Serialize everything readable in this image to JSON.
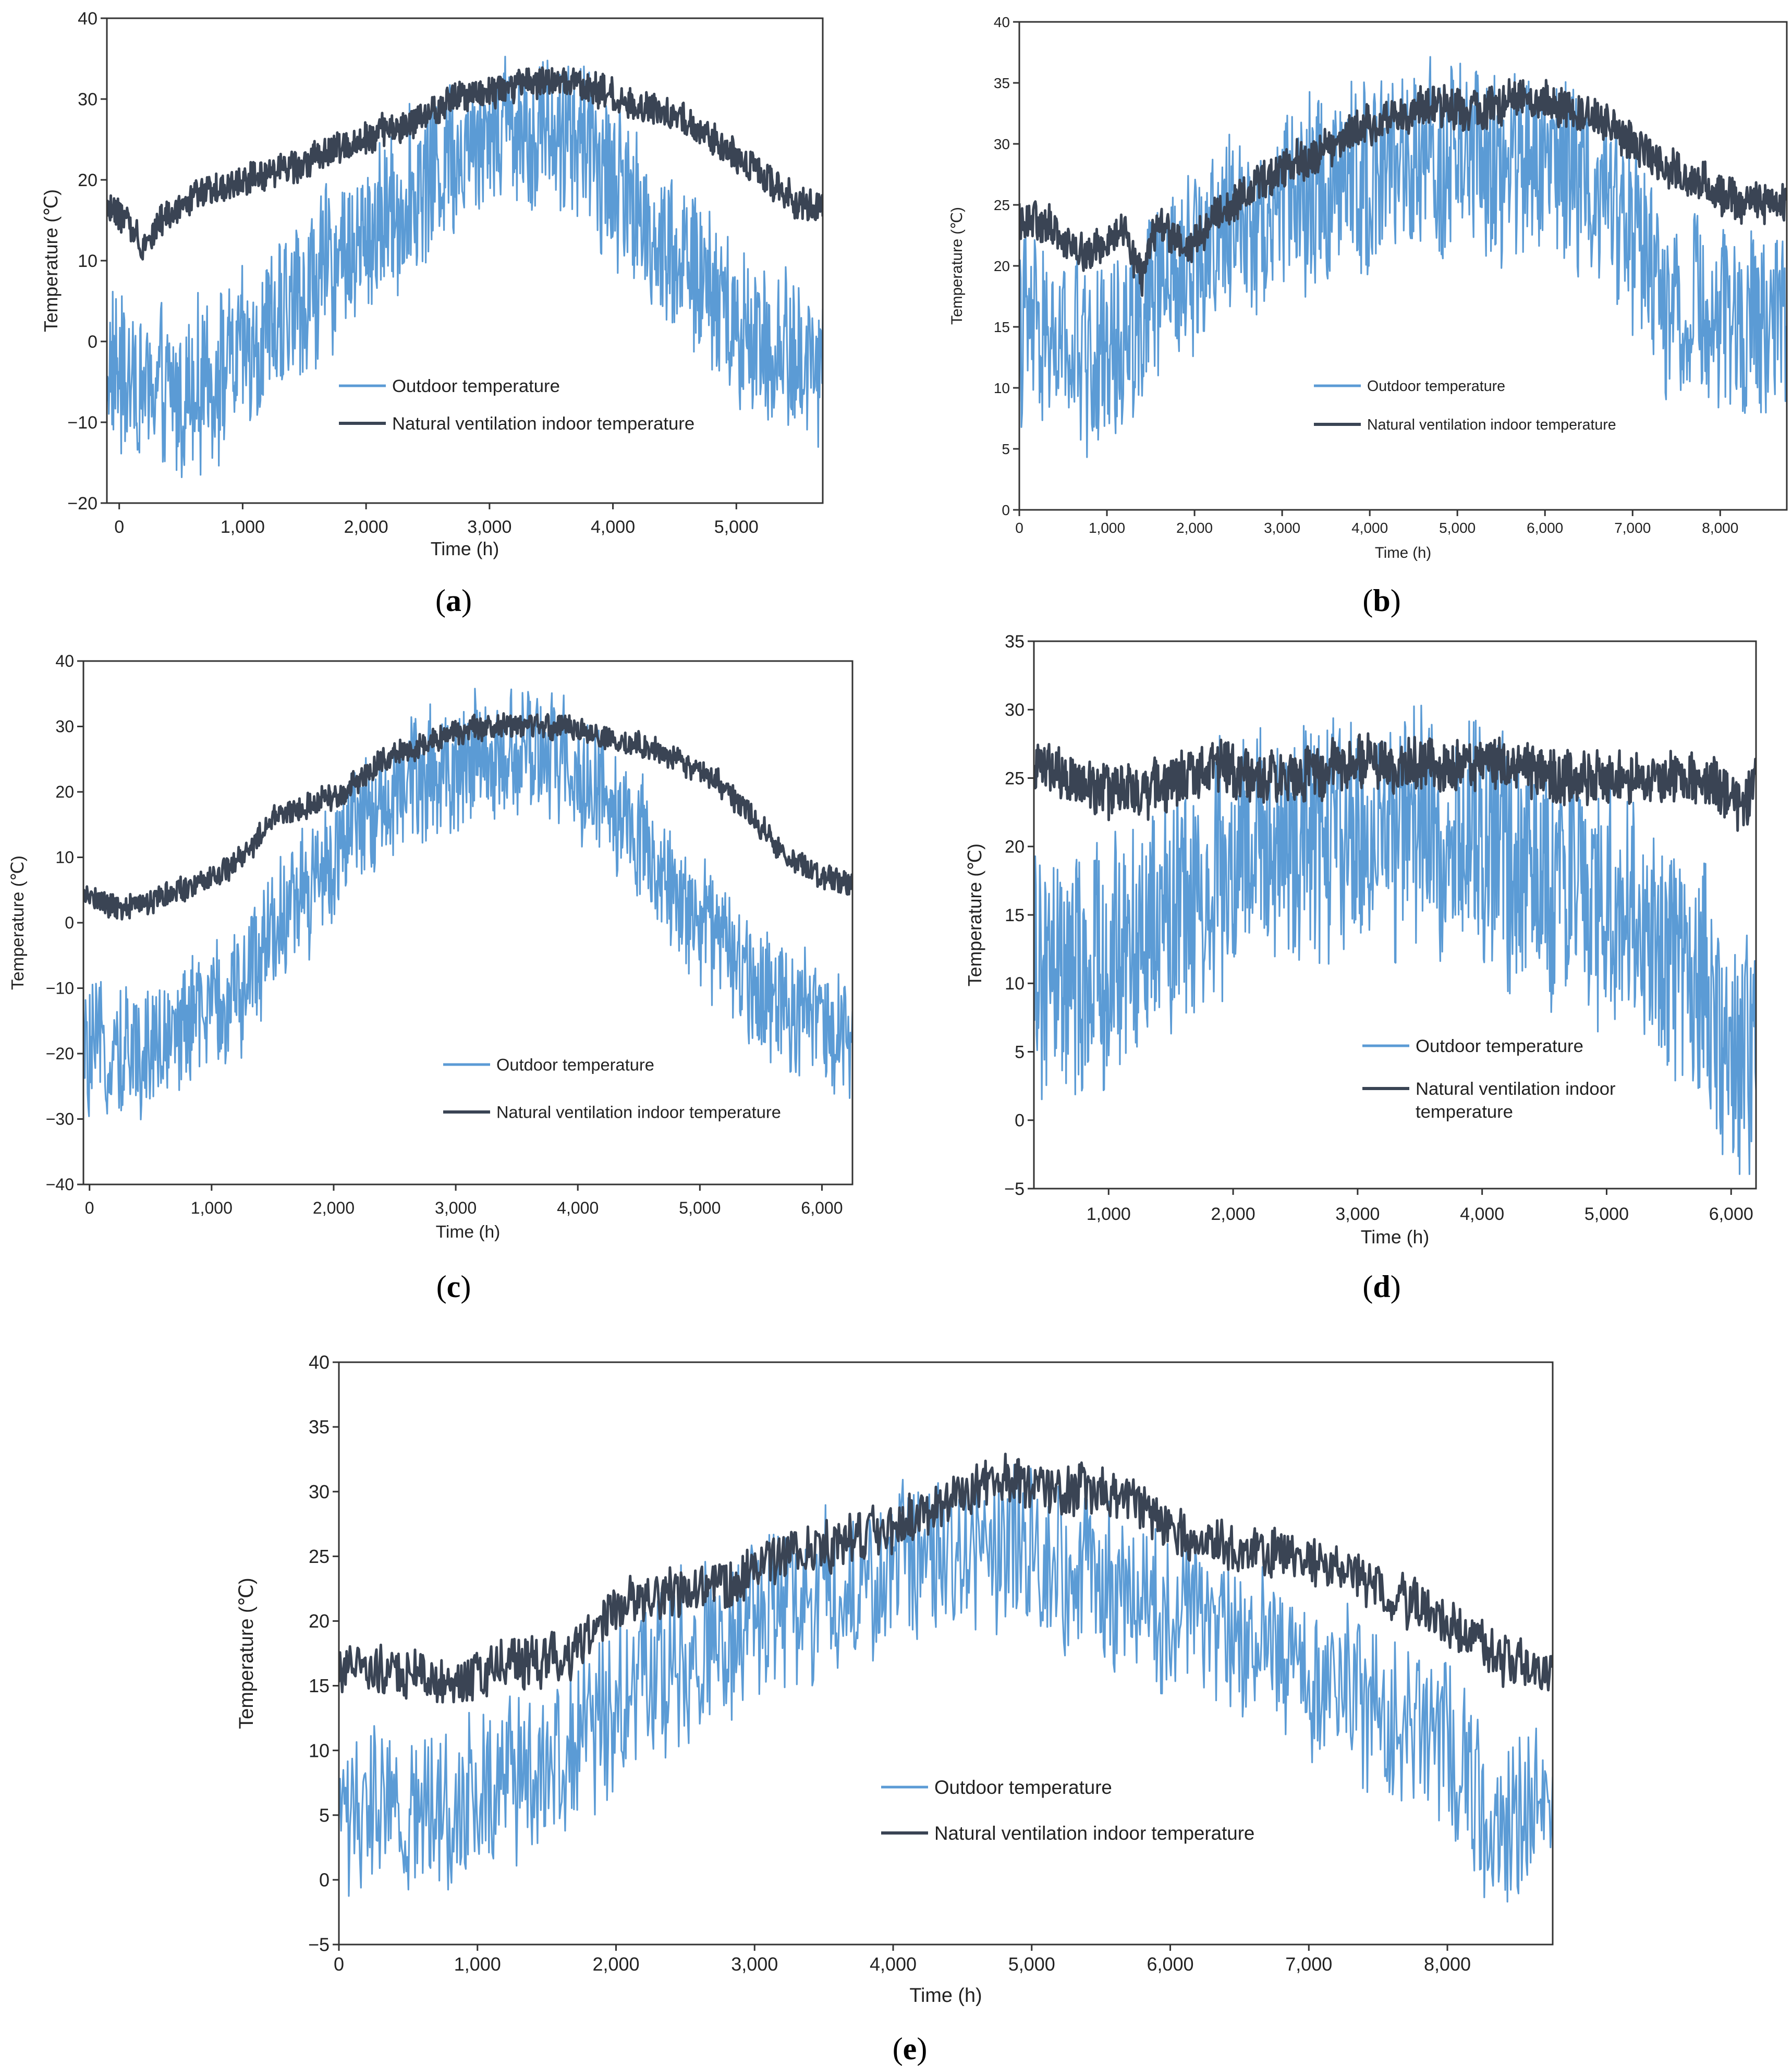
{
  "colors": {
    "outdoor": "#5b9bd5",
    "indoor": "#3a4454",
    "axis": "#333333"
  },
  "chart_data": [
    {
      "id": "a",
      "type": "line",
      "caption_letter": "a",
      "caption_open": "(",
      "caption_close": ")",
      "xlabel": "Time (h)",
      "ylabel": "Temperature (℃)",
      "xlim": [
        -100,
        5700
      ],
      "ylim": [
        -20,
        40
      ],
      "yticks": [
        "40",
        "30",
        "20",
        "10",
        "0",
        "−10",
        "−20"
      ],
      "ytick_values": [
        40,
        30,
        20,
        10,
        0,
        -10,
        -20
      ],
      "xticks": [
        "0",
        "1,000",
        "2,000",
        "3,000",
        "4,000",
        "5,000"
      ],
      "xtick_values": [
        0,
        1000,
        2000,
        3000,
        4000,
        5000
      ],
      "legend": [
        "Outdoor temperature",
        "Natural ventilation indoor temperature"
      ],
      "series": [
        {
          "name": "Outdoor temperature",
          "x": [
            -100,
            200,
            500,
            800,
            1100,
            1400,
            1700,
            2000,
            2300,
            2600,
            2900,
            3200,
            3500,
            3800,
            4100,
            4400,
            4700,
            5000,
            5300,
            5700
          ],
          "values": [
            -3,
            -6,
            -7,
            -4,
            -1,
            4,
            9,
            13,
            17,
            22,
            26,
            27,
            26,
            24,
            18,
            12,
            8,
            2,
            -1,
            -3
          ],
          "spread": 9
        },
        {
          "name": "Natural ventilation indoor temperature",
          "x": [
            -100,
            50,
            200,
            350,
            600,
            900,
            1200,
            1500,
            1800,
            2100,
            2400,
            2700,
            3000,
            3300,
            3600,
            3900,
            4200,
            4500,
            4800,
            5100,
            5400,
            5700
          ],
          "values": [
            17,
            15,
            12,
            15,
            18,
            19,
            21,
            22,
            24,
            26,
            27,
            30,
            31,
            32,
            32,
            31,
            29,
            28,
            25,
            22,
            18,
            16
          ],
          "spread": 1.8
        }
      ]
    },
    {
      "id": "b",
      "type": "line",
      "caption_letter": "b",
      "caption_open": "(",
      "caption_close": ")",
      "xlabel": "Time (h)",
      "ylabel": "Temperature (℃)",
      "xlim": [
        0,
        8760
      ],
      "ylim": [
        0,
        40
      ],
      "yticks": [
        "40",
        "35",
        "30",
        "25",
        "20",
        "15",
        "10",
        "5",
        "0"
      ],
      "ytick_values": [
        40,
        35,
        30,
        25,
        20,
        15,
        10,
        5,
        0
      ],
      "xticks": [
        "0",
        "1,000",
        "2,000",
        "3,000",
        "4,000",
        "5,000",
        "6,000",
        "7,000",
        "8,000"
      ],
      "xtick_values": [
        0,
        1000,
        2000,
        3000,
        4000,
        5000,
        6000,
        7000,
        8000
      ],
      "legend": [
        "Outdoor temperature",
        "Natural ventilation indoor temperature"
      ],
      "series": [
        {
          "name": "Outdoor temperature",
          "x": [
            0,
            500,
            1000,
            1400,
            1800,
            2200,
            2600,
            3000,
            3400,
            3800,
            4200,
            4600,
            5000,
            5400,
            5800,
            6200,
            6600,
            7000,
            7400,
            7800,
            8200,
            8760
          ],
          "values": [
            15,
            13,
            12,
            16,
            19,
            22,
            24,
            25,
            26,
            27,
            28,
            28,
            29,
            28,
            29,
            28,
            27,
            23,
            17,
            16,
            15,
            16
          ],
          "spread": 7
        },
        {
          "name": "Natural ventilation indoor temperature",
          "x": [
            0,
            400,
            800,
            1200,
            1400,
            1600,
            1900,
            2200,
            2600,
            3000,
            3400,
            3800,
            4200,
            4600,
            5000,
            5400,
            5800,
            6200,
            6600,
            7000,
            7400,
            7800,
            8200,
            8760
          ],
          "values": [
            24,
            23,
            21,
            23,
            19,
            24,
            21,
            24,
            26,
            28,
            29,
            31,
            32,
            33,
            33,
            33,
            34,
            33,
            32,
            30,
            28,
            27,
            25,
            25
          ],
          "spread": 1.5
        }
      ]
    },
    {
      "id": "c",
      "type": "line",
      "caption_letter": "c",
      "caption_open": "(",
      "caption_close": ")",
      "xlabel": "Time (h)",
      "ylabel": "Temperature (℃)",
      "xlim": [
        -50,
        6250
      ],
      "ylim": [
        -40,
        40
      ],
      "yticks": [
        "40",
        "30",
        "20",
        "10",
        "0",
        "−10",
        "−20",
        "−30",
        "−40"
      ],
      "ytick_values": [
        40,
        30,
        20,
        10,
        0,
        -10,
        -20,
        -30,
        -40
      ],
      "xticks": [
        "0",
        "1,000",
        "2,000",
        "3,000",
        "4,000",
        "5,000",
        "6,000"
      ],
      "xtick_values": [
        0,
        1000,
        2000,
        3000,
        4000,
        5000,
        6000
      ],
      "legend": [
        "Outdoor temperature",
        "Natural ventilation indoor temperature"
      ],
      "series": [
        {
          "name": "Outdoor temperature",
          "x": [
            -50,
            300,
            600,
            900,
            1200,
            1500,
            1800,
            2100,
            2400,
            2700,
            3000,
            3300,
            3600,
            3900,
            4200,
            4500,
            4800,
            5100,
            5400,
            5700,
            6000,
            6250
          ],
          "values": [
            -20,
            -20,
            -18,
            -14,
            -12,
            0,
            5,
            12,
            18,
            22,
            24,
            25,
            26,
            25,
            20,
            12,
            5,
            -2,
            -8,
            -12,
            -15,
            -18
          ],
          "spread": 9
        },
        {
          "name": "Natural ventilation indoor temperature",
          "x": [
            -50,
            300,
            600,
            900,
            1200,
            1500,
            1800,
            2100,
            2400,
            2700,
            3000,
            3300,
            3600,
            3900,
            4200,
            4500,
            4800,
            5100,
            5400,
            5700,
            6000,
            6250
          ],
          "values": [
            4,
            2,
            4,
            6,
            9,
            16,
            18,
            20,
            25,
            27,
            29,
            30,
            30,
            30,
            28,
            27,
            25,
            22,
            17,
            10,
            7,
            6
          ],
          "spread": 1.8
        }
      ]
    },
    {
      "id": "d",
      "type": "line",
      "caption_letter": "d",
      "caption_open": "(",
      "caption_close": ")",
      "xlabel": "Time (h)",
      "ylabel": "Temperature (℃)",
      "xlim": [
        400,
        6200
      ],
      "ylim": [
        -5,
        35
      ],
      "yticks": [
        "35",
        "30",
        "25",
        "20",
        "15",
        "10",
        "5",
        "0",
        "−5"
      ],
      "ytick_values": [
        35,
        30,
        25,
        20,
        15,
        10,
        5,
        0,
        -5
      ],
      "xticks": [
        "1,000",
        "2,000",
        "3,000",
        "4,000",
        "5,000",
        "6,000"
      ],
      "xtick_values": [
        1000,
        2000,
        3000,
        4000,
        5000,
        6000
      ],
      "legend": [
        "Outdoor temperature",
        "Natural ventilation indoor",
        "temperature"
      ],
      "series": [
        {
          "name": "Outdoor temperature",
          "x": [
            400,
            700,
            1000,
            1300,
            1600,
            1900,
            2200,
            2500,
            2800,
            3100,
            3400,
            3700,
            4000,
            4300,
            4600,
            4900,
            5200,
            5500,
            5800,
            6100,
            6200
          ],
          "values": [
            11,
            10,
            11,
            14,
            16,
            18,
            19,
            20,
            20,
            21,
            21,
            21,
            20,
            19,
            17,
            16,
            14,
            12,
            9,
            4,
            6
          ],
          "spread": 8
        },
        {
          "name": "Natural ventilation indoor temperature",
          "x": [
            400,
            700,
            1000,
            1300,
            1600,
            1900,
            2200,
            2500,
            2800,
            3100,
            3400,
            3700,
            4000,
            4300,
            4600,
            4900,
            5200,
            5500,
            5800,
            6100,
            6200
          ],
          "values": [
            26,
            25,
            24,
            24,
            25,
            26,
            25,
            25,
            26,
            26,
            26,
            26,
            26,
            26,
            25,
            25,
            25,
            25,
            25,
            23,
            25
          ],
          "spread": 1.8
        }
      ]
    },
    {
      "id": "e",
      "type": "line",
      "caption_letter": "e",
      "caption_open": "(",
      "caption_close": ")",
      "xlabel": "Time (h)",
      "ylabel": "Temperature (℃)",
      "xlim": [
        0,
        8760
      ],
      "ylim": [
        -5,
        40
      ],
      "yticks": [
        "40",
        "35",
        "30",
        "25",
        "20",
        "15",
        "10",
        "5",
        "0",
        "−5"
      ],
      "ytick_values": [
        40,
        35,
        30,
        25,
        20,
        15,
        10,
        5,
        0,
        -5
      ],
      "xticks": [
        "0",
        "1,000",
        "2,000",
        "3,000",
        "4,000",
        "5,000",
        "6,000",
        "7,000",
        "8,000"
      ],
      "xtick_values": [
        0,
        1000,
        2000,
        3000,
        4000,
        5000,
        6000,
        7000,
        8000
      ],
      "legend": [
        "Outdoor temperature",
        "Natural ventilation indoor temperature"
      ],
      "series": [
        {
          "name": "Outdoor temperature",
          "x": [
            0,
            400,
            800,
            1200,
            1600,
            2000,
            2400,
            2800,
            3200,
            3600,
            4000,
            4400,
            4800,
            5200,
            5600,
            6000,
            6400,
            6800,
            7200,
            7600,
            8000,
            8300,
            8760
          ],
          "values": [
            5,
            5,
            6,
            8,
            10,
            14,
            17,
            19,
            21,
            22,
            24,
            25,
            26,
            25,
            22,
            20,
            19,
            17,
            15,
            13,
            10,
            4,
            6
          ],
          "spread": 6
        },
        {
          "name": "Natural ventilation indoor temperature",
          "x": [
            0,
            400,
            800,
            1200,
            1600,
            2000,
            2400,
            2800,
            3200,
            3600,
            4000,
            4400,
            4800,
            5200,
            5600,
            6000,
            6400,
            6800,
            7200,
            7600,
            8000,
            8400,
            8760
          ],
          "values": [
            16,
            16,
            15,
            17,
            17,
            21,
            22,
            23,
            25,
            26,
            27,
            29,
            31,
            30,
            30,
            27,
            26,
            25,
            24,
            22,
            20,
            17,
            16
          ],
          "spread": 1.8
        }
      ]
    }
  ]
}
